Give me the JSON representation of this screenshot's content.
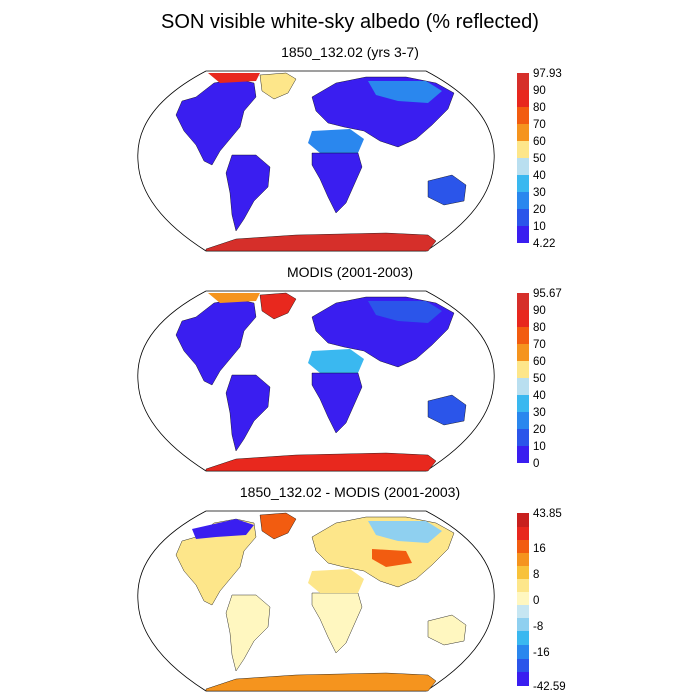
{
  "figure": {
    "title": "SON visible white-sky albedo (% reflected)"
  },
  "chart_data": [
    {
      "type": "heatmap",
      "title": "1850_132.02 (yrs 3-7)",
      "colorbar": {
        "labels": [
          "97.93",
          "90",
          "80",
          "70",
          "60",
          "50",
          "40",
          "30",
          "20",
          "10",
          "4.22"
        ],
        "colors": [
          "#d62f2a",
          "#e8281e",
          "#f25c10",
          "#f5941e",
          "#fde68a",
          "#b9dff0",
          "#3ab8f0",
          "#2a87ee",
          "#2b55ea",
          "#3a1ef0"
        ]
      }
    },
    {
      "type": "heatmap",
      "title": "MODIS (2001-2003)",
      "colorbar": {
        "labels": [
          "95.67",
          "90",
          "80",
          "70",
          "60",
          "50",
          "40",
          "30",
          "20",
          "10",
          "0"
        ],
        "colors": [
          "#d62f2a",
          "#e8281e",
          "#f25c10",
          "#f5941e",
          "#fde68a",
          "#b9dff0",
          "#3ab8f0",
          "#2a87ee",
          "#2b55ea",
          "#3a1ef0"
        ]
      }
    },
    {
      "type": "heatmap",
      "title": "1850_132.02 - MODIS (2001-2003)",
      "colorbar": {
        "labels": [
          "43.85",
          "16",
          "8",
          "0",
          "-8",
          "-16",
          "-42.59"
        ],
        "colors": [
          "#c8201e",
          "#e8281e",
          "#f25c10",
          "#f5941e",
          "#f8c23a",
          "#fde68a",
          "#fff7c0",
          "#c6e6f2",
          "#8fd0f0",
          "#3ab8f0",
          "#2a87ee",
          "#2b55ea",
          "#3a1ef0"
        ]
      }
    }
  ]
}
